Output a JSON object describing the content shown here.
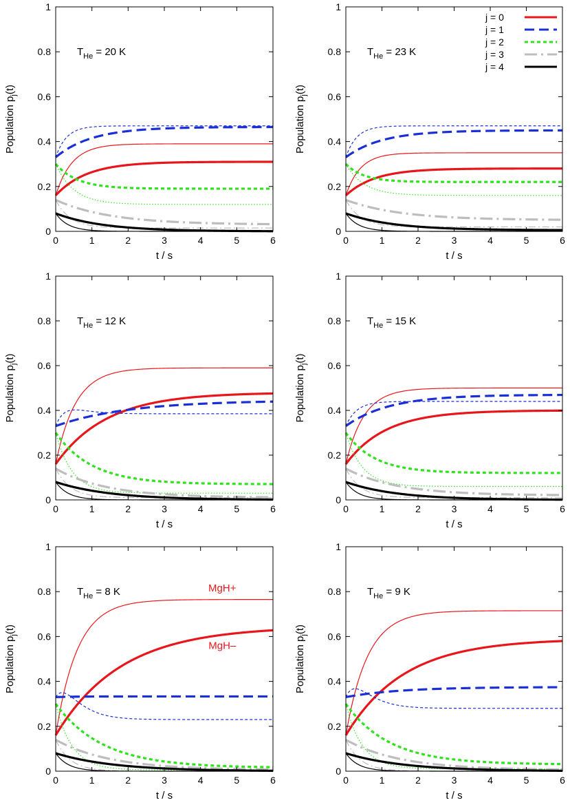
{
  "figure": {
    "description_label": "Population vs time panels"
  },
  "colors": {
    "j0": "#e8161b",
    "j1": "#1a2fd6",
    "j2": "#2ee21c",
    "j3": "#bdbdbd",
    "j4": "#000000"
  },
  "chart_data": [
    {
      "type": "line",
      "panel": "top-left",
      "title_prefix": "T",
      "title_sub": "He",
      "title_suffix": " = 20 K",
      "xlabel": "t / s",
      "ylabel": "Population p",
      "ylabel_sub": "j",
      "ylabel_suffix": "(t)",
      "xlim": [
        0,
        6
      ],
      "ylim": [
        0,
        1
      ],
      "xticks": [
        "0",
        "1",
        "2",
        "3",
        "4",
        "5",
        "6"
      ],
      "yticks": [
        "0",
        "0.2",
        "0.4",
        "0.6",
        "0.8",
        "1"
      ],
      "series": [
        {
          "name": "j=0 MgH+",
          "j": 0,
          "style": "thin",
          "y0": 0.16,
          "yinf": 0.39,
          "tau": 0.45
        },
        {
          "name": "j=0 MgH-",
          "j": 0,
          "style": "thick",
          "y0": 0.16,
          "yinf": 0.31,
          "tau": 0.85
        },
        {
          "name": "j=1 MgH+",
          "j": 1,
          "style": "thin",
          "y0": 0.33,
          "yinf": 0.47,
          "tau": 0.3
        },
        {
          "name": "j=1 MgH-",
          "j": 1,
          "style": "thick",
          "y0": 0.33,
          "yinf": 0.465,
          "tau": 1.0
        },
        {
          "name": "j=2 MgH+",
          "j": 2,
          "style": "thin",
          "y0": 0.3,
          "yinf": 0.12,
          "tau": 0.5
        },
        {
          "name": "j=2 MgH-",
          "j": 2,
          "style": "thick",
          "y0": 0.3,
          "yinf": 0.19,
          "tau": 0.6
        },
        {
          "name": "j=3 MgH+",
          "j": 3,
          "style": "thin",
          "y0": 0.14,
          "yinf": 0.015,
          "tau": 0.4
        },
        {
          "name": "j=3 MgH-",
          "j": 3,
          "style": "thick",
          "y0": 0.14,
          "yinf": 0.03,
          "tau": 1.5
        },
        {
          "name": "j=4 MgH+",
          "j": 4,
          "style": "thin",
          "y0": 0.08,
          "yinf": 0.0,
          "tau": 0.35
        },
        {
          "name": "j=4 MgH-",
          "j": 4,
          "style": "thick",
          "y0": 0.08,
          "yinf": 0.0,
          "tau": 1.3
        }
      ]
    },
    {
      "type": "line",
      "panel": "top-right",
      "title_prefix": "T",
      "title_sub": "He",
      "title_suffix": " = 23 K",
      "xlabel": "t / s",
      "ylabel": "Population p",
      "ylabel_sub": "j",
      "ylabel_suffix": "(t)",
      "xlim": [
        0,
        6
      ],
      "ylim": [
        0,
        1
      ],
      "xticks": [
        "0",
        "1",
        "2",
        "3",
        "4",
        "5",
        "6"
      ],
      "yticks": [
        "0",
        "0.2",
        "0.4",
        "0.6",
        "0.8",
        "1"
      ],
      "legend": [
        {
          "label": "j = 0",
          "j": 0
        },
        {
          "label": "j = 1",
          "j": 1
        },
        {
          "label": "j = 2",
          "j": 2
        },
        {
          "label": "j = 3",
          "j": 3
        },
        {
          "label": "j = 4",
          "j": 4
        }
      ],
      "series": [
        {
          "name": "j=0 MgH+",
          "j": 0,
          "style": "thin",
          "y0": 0.16,
          "yinf": 0.35,
          "tau": 0.4
        },
        {
          "name": "j=0 MgH-",
          "j": 0,
          "style": "thick",
          "y0": 0.16,
          "yinf": 0.28,
          "tau": 0.8
        },
        {
          "name": "j=1 MgH+",
          "j": 1,
          "style": "thin",
          "y0": 0.33,
          "yinf": 0.47,
          "tau": 0.3
        },
        {
          "name": "j=1 MgH-",
          "j": 1,
          "style": "thick",
          "y0": 0.33,
          "yinf": 0.45,
          "tau": 1.0
        },
        {
          "name": "j=2 MgH+",
          "j": 2,
          "style": "thin",
          "y0": 0.3,
          "yinf": 0.16,
          "tau": 0.5
        },
        {
          "name": "j=2 MgH-",
          "j": 2,
          "style": "thick",
          "y0": 0.3,
          "yinf": 0.22,
          "tau": 0.5
        },
        {
          "name": "j=3 MgH+",
          "j": 3,
          "style": "thin",
          "y0": 0.14,
          "yinf": 0.02,
          "tau": 0.4
        },
        {
          "name": "j=3 MgH-",
          "j": 3,
          "style": "thick",
          "y0": 0.14,
          "yinf": 0.05,
          "tau": 1.5
        },
        {
          "name": "j=4 MgH+",
          "j": 4,
          "style": "thin",
          "y0": 0.08,
          "yinf": 0.0,
          "tau": 0.35
        },
        {
          "name": "j=4 MgH-",
          "j": 4,
          "style": "thick",
          "y0": 0.08,
          "yinf": 0.005,
          "tau": 1.3
        }
      ]
    },
    {
      "type": "line",
      "panel": "middle-left",
      "title_prefix": "T",
      "title_sub": "He",
      "title_suffix": " = 12 K",
      "xlabel": "t / s",
      "ylabel": "Population p",
      "ylabel_sub": "j",
      "ylabel_suffix": "(t)",
      "xlim": [
        0,
        6
      ],
      "ylim": [
        0,
        1
      ],
      "xticks": [
        "0",
        "1",
        "2",
        "3",
        "4",
        "5",
        "6"
      ],
      "yticks": [
        "0",
        "0.2",
        "0.4",
        "0.6",
        "0.8",
        "1"
      ],
      "series": [
        {
          "name": "j=0 MgH+",
          "j": 0,
          "style": "thin",
          "y0": 0.16,
          "yinf": 0.59,
          "tau": 0.55
        },
        {
          "name": "j=0 MgH-",
          "j": 0,
          "style": "thick",
          "y0": 0.16,
          "yinf": 0.48,
          "tau": 1.4
        },
        {
          "name": "j=1 MgH+",
          "j": 1,
          "style": "thin",
          "y0": 0.33,
          "yinf": 0.385,
          "tau": 0.5,
          "bump": 0.04
        },
        {
          "name": "j=1 MgH-",
          "j": 1,
          "style": "thick",
          "y0": 0.33,
          "yinf": 0.445,
          "tau": 2.0
        },
        {
          "name": "j=2 MgH+",
          "j": 2,
          "style": "thin",
          "y0": 0.3,
          "yinf": 0.03,
          "tau": 0.45
        },
        {
          "name": "j=2 MgH-",
          "j": 2,
          "style": "thick",
          "y0": 0.3,
          "yinf": 0.07,
          "tau": 1.0
        },
        {
          "name": "j=3 MgH+",
          "j": 3,
          "style": "thin",
          "y0": 0.14,
          "yinf": 0.01,
          "tau": 0.4
        },
        {
          "name": "j=3 MgH-",
          "j": 3,
          "style": "thick",
          "y0": 0.14,
          "yinf": 0.01,
          "tau": 1.4
        },
        {
          "name": "j=4 MgH+",
          "j": 4,
          "style": "thin",
          "y0": 0.08,
          "yinf": 0.0,
          "tau": 0.35
        },
        {
          "name": "j=4 MgH-",
          "j": 4,
          "style": "thick",
          "y0": 0.08,
          "yinf": 0.0,
          "tau": 1.5
        }
      ]
    },
    {
      "type": "line",
      "panel": "middle-right",
      "title_prefix": "T",
      "title_sub": "He",
      "title_suffix": " = 15 K",
      "xlabel": "t / s",
      "ylabel": "Population p",
      "ylabel_sub": "j",
      "ylabel_suffix": "(t)",
      "xlim": [
        0,
        6
      ],
      "ylim": [
        0,
        1
      ],
      "xticks": [
        "0",
        "1",
        "2",
        "3",
        "4",
        "5",
        "6"
      ],
      "yticks": [
        "0",
        "0.2",
        "0.4",
        "0.6",
        "0.8",
        "1"
      ],
      "series": [
        {
          "name": "j=0 MgH+",
          "j": 0,
          "style": "thin",
          "y0": 0.16,
          "yinf": 0.5,
          "tau": 0.5
        },
        {
          "name": "j=0 MgH-",
          "j": 0,
          "style": "thick",
          "y0": 0.16,
          "yinf": 0.4,
          "tau": 1.1
        },
        {
          "name": "j=1 MgH+",
          "j": 1,
          "style": "thin",
          "y0": 0.33,
          "yinf": 0.44,
          "tau": 0.3
        },
        {
          "name": "j=1 MgH-",
          "j": 1,
          "style": "thick",
          "y0": 0.33,
          "yinf": 0.47,
          "tau": 1.2
        },
        {
          "name": "j=2 MgH+",
          "j": 2,
          "style": "thin",
          "y0": 0.3,
          "yinf": 0.06,
          "tau": 0.45
        },
        {
          "name": "j=2 MgH-",
          "j": 2,
          "style": "thick",
          "y0": 0.3,
          "yinf": 0.12,
          "tau": 0.8
        },
        {
          "name": "j=3 MgH+",
          "j": 3,
          "style": "thin",
          "y0": 0.14,
          "yinf": 0.01,
          "tau": 0.4
        },
        {
          "name": "j=3 MgH-",
          "j": 3,
          "style": "thick",
          "y0": 0.14,
          "yinf": 0.02,
          "tau": 1.4
        },
        {
          "name": "j=4 MgH+",
          "j": 4,
          "style": "thin",
          "y0": 0.08,
          "yinf": 0.0,
          "tau": 0.35
        },
        {
          "name": "j=4 MgH-",
          "j": 4,
          "style": "thick",
          "y0": 0.08,
          "yinf": 0.0,
          "tau": 1.4
        }
      ]
    },
    {
      "type": "line",
      "panel": "bottom-left",
      "title_prefix": "T",
      "title_sub": "He",
      "title_suffix": " = 8 K",
      "xlabel": "t / s",
      "ylabel": "Population p",
      "ylabel_sub": "j",
      "ylabel_suffix": "(t)",
      "xlim": [
        0,
        6
      ],
      "ylim": [
        0,
        1
      ],
      "xticks": [
        "0",
        "1",
        "2",
        "3",
        "4",
        "5",
        "6"
      ],
      "yticks": [
        "0",
        "0.2",
        "0.4",
        "0.6",
        "0.8",
        "1"
      ],
      "annotations": [
        {
          "text": "MgH+",
          "color": "#e8161b",
          "x": 4.6,
          "y": 0.8
        },
        {
          "text": "MgH–",
          "color": "#e8161b",
          "x": 4.6,
          "y": 0.545
        }
      ],
      "series": [
        {
          "name": "j=0 MgH+",
          "j": 0,
          "style": "thin",
          "y0": 0.16,
          "yinf": 0.765,
          "tau": 0.6
        },
        {
          "name": "j=0 MgH-",
          "j": 0,
          "style": "thick",
          "y0": 0.16,
          "yinf": 0.645,
          "tau": 1.8
        },
        {
          "name": "j=1 MgH+",
          "j": 1,
          "style": "thin",
          "y0": 0.33,
          "yinf": 0.23,
          "tau": 0.5,
          "bump": 0.06
        },
        {
          "name": "j=1 MgH-",
          "j": 1,
          "style": "thick",
          "y0": 0.33,
          "yinf": 0.333,
          "tau": 0.5
        },
        {
          "name": "j=2 MgH+",
          "j": 2,
          "style": "thin",
          "y0": 0.3,
          "yinf": 0.005,
          "tau": 0.45
        },
        {
          "name": "j=2 MgH-",
          "j": 2,
          "style": "thick",
          "y0": 0.3,
          "yinf": 0.015,
          "tau": 1.3
        },
        {
          "name": "j=3 MgH+",
          "j": 3,
          "style": "thin",
          "y0": 0.14,
          "yinf": 0.0,
          "tau": 0.4
        },
        {
          "name": "j=3 MgH-",
          "j": 3,
          "style": "thick",
          "y0": 0.14,
          "yinf": 0.005,
          "tau": 1.5
        },
        {
          "name": "j=4 MgH+",
          "j": 4,
          "style": "thin",
          "y0": 0.08,
          "yinf": 0.0,
          "tau": 0.35
        },
        {
          "name": "j=4 MgH-",
          "j": 4,
          "style": "thick",
          "y0": 0.08,
          "yinf": 0.0,
          "tau": 1.6
        }
      ]
    },
    {
      "type": "line",
      "panel": "bottom-right",
      "title_prefix": "T",
      "title_sub": "He",
      "title_suffix": " = 9 K",
      "xlabel": "t / s",
      "ylabel": "Population p",
      "ylabel_sub": "j",
      "ylabel_suffix": "(t)",
      "xlim": [
        0,
        6
      ],
      "ylim": [
        0,
        1
      ],
      "xticks": [
        "0",
        "1",
        "2",
        "3",
        "4",
        "5",
        "6"
      ],
      "yticks": [
        "0",
        "0.2",
        "0.4",
        "0.6",
        "0.8",
        "1"
      ],
      "series": [
        {
          "name": "j=0 MgH+",
          "j": 0,
          "style": "thin",
          "y0": 0.16,
          "yinf": 0.715,
          "tau": 0.6
        },
        {
          "name": "j=0 MgH-",
          "j": 0,
          "style": "thick",
          "y0": 0.16,
          "yinf": 0.59,
          "tau": 1.6
        },
        {
          "name": "j=1 MgH+",
          "j": 1,
          "style": "thin",
          "y0": 0.33,
          "yinf": 0.28,
          "tau": 0.5,
          "bump": 0.06
        },
        {
          "name": "j=1 MgH-",
          "j": 1,
          "style": "thick",
          "y0": 0.33,
          "yinf": 0.375,
          "tau": 1.5
        },
        {
          "name": "j=2 MgH+",
          "j": 2,
          "style": "thin",
          "y0": 0.3,
          "yinf": 0.01,
          "tau": 0.45
        },
        {
          "name": "j=2 MgH-",
          "j": 2,
          "style": "thick",
          "y0": 0.3,
          "yinf": 0.03,
          "tau": 1.2
        },
        {
          "name": "j=3 MgH+",
          "j": 3,
          "style": "thin",
          "y0": 0.14,
          "yinf": 0.0,
          "tau": 0.4
        },
        {
          "name": "j=3 MgH-",
          "j": 3,
          "style": "thick",
          "y0": 0.14,
          "yinf": 0.005,
          "tau": 1.5
        },
        {
          "name": "j=4 MgH+",
          "j": 4,
          "style": "thin",
          "y0": 0.08,
          "yinf": 0.0,
          "tau": 0.35
        },
        {
          "name": "j=4 MgH-",
          "j": 4,
          "style": "thick",
          "y0": 0.08,
          "yinf": 0.0,
          "tau": 1.6
        }
      ]
    }
  ]
}
